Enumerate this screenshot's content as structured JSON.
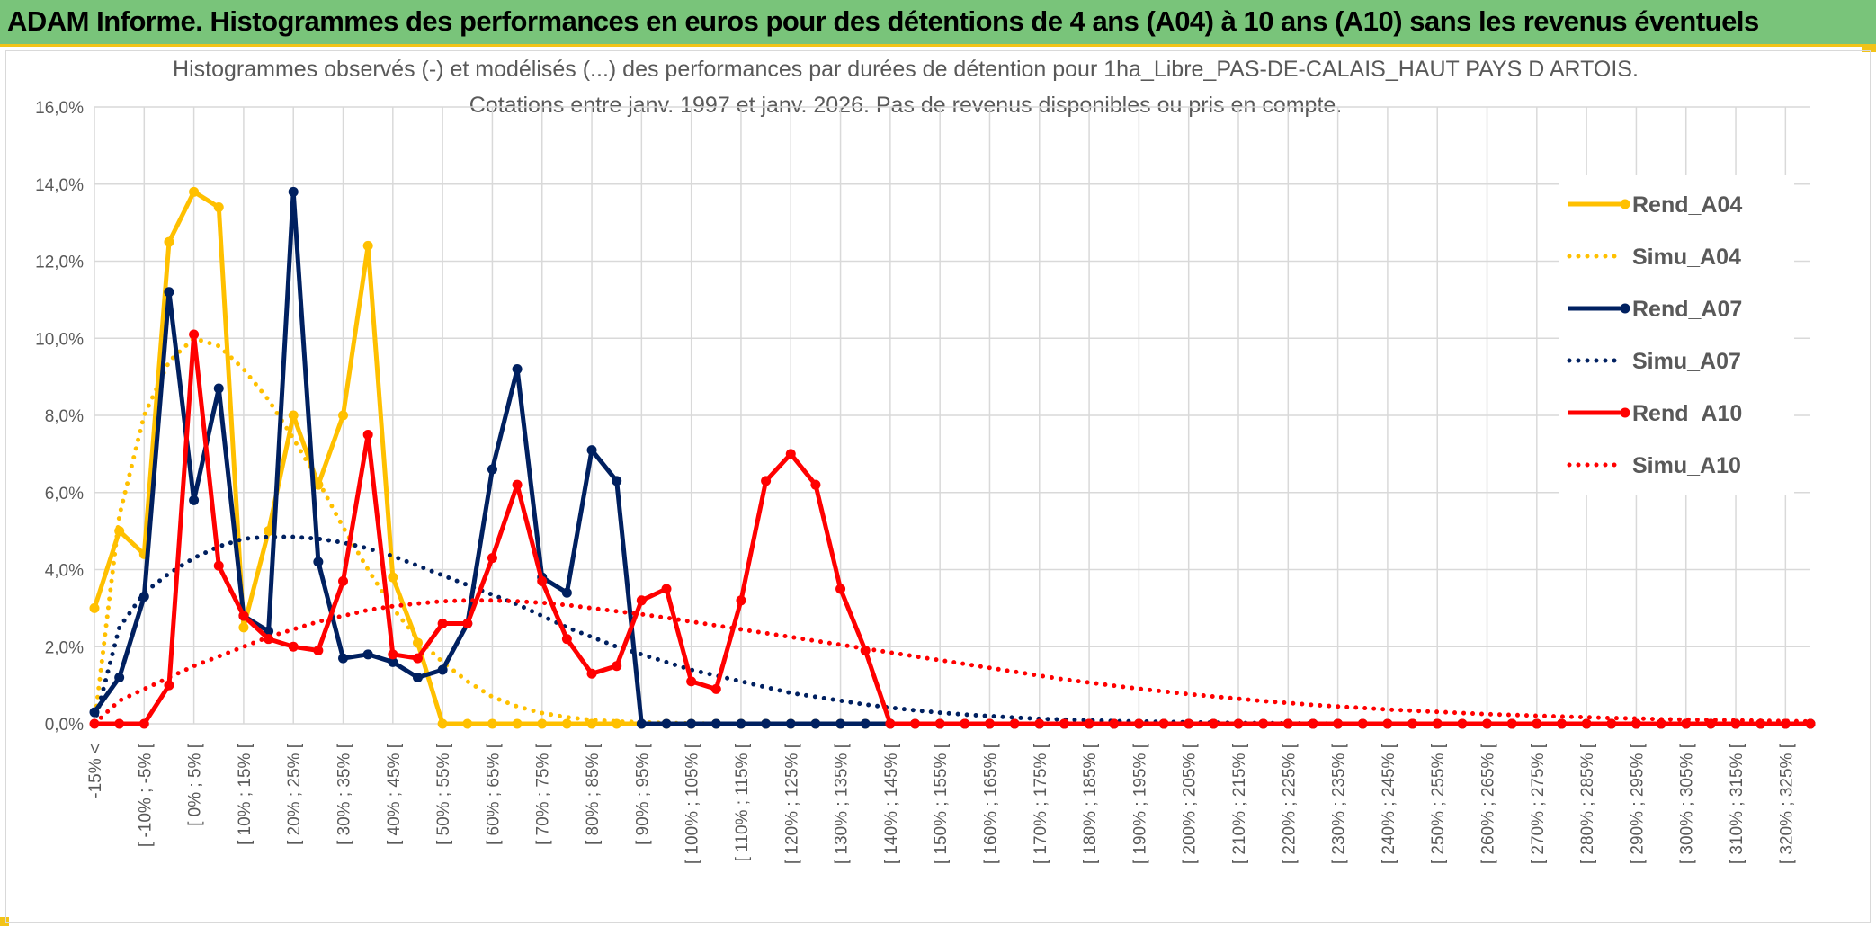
{
  "banner": {
    "title": "ADAM Informe. Histogrammes des performances en euros pour des détentions de 4 ans (A04) à 10 ans (A10) sans les revenus éventuels"
  },
  "colors": {
    "banner_bg": "#79c47a",
    "accent_yellow": "#f2c318",
    "a04": "#ffc000",
    "a07": "#002060",
    "a10": "#ff0000",
    "grid": "#d9d9d9",
    "text": "#595959"
  },
  "chart_data": {
    "type": "line",
    "title_line1": "Histogrammes observés (-) et modélisés (...) des performances par durées de détention pour 1ha_Libre_PAS-DE-CALAIS_HAUT PAYS D ARTOIS.",
    "title_line2": "Cotations entre janv. 1997 et janv. 2026. Pas de revenus disponibles ou pris en compte.",
    "ylim": [
      0,
      16
    ],
    "yticks": [
      "0,0%",
      "2,0%",
      "4,0%",
      "6,0%",
      "8,0%",
      "10,0%",
      "12,0%",
      "14,0%",
      "16,0%"
    ],
    "categories": [
      "-15% <",
      "[ -15% ; -10% [",
      "[ -10% ; -5% [",
      "[ -5% ; 0% [",
      "[ 0% ; 5% [",
      "[ 5% ; 10% [",
      "[ 10% ; 15% [",
      "[ 15% ; 20% [",
      "[ 20% ; 25% [",
      "[ 25% ; 30% [",
      "[ 30% ; 35% [",
      "[ 35% ; 40% [",
      "[ 40% ; 45% [",
      "[ 45% ; 50% [",
      "[ 50% ; 55% [",
      "[ 55% ; 60% [",
      "[ 60% ; 65% [",
      "[ 65% ; 70% [",
      "[ 70% ; 75% [",
      "[ 75% ; 80% [",
      "[ 80% ; 85% [",
      "[ 85% ; 90% [",
      "[ 90% ; 95% [",
      "[ 95% ; 100% [",
      "[ 100% ; 105% [",
      "[ 105% ; 110% [",
      "[ 110% ; 115% [",
      "[ 115% ; 120% [",
      "[ 120% ; 125% [",
      "[ 125% ; 130% [",
      "[ 130% ; 135% [",
      "[ 135% ; 140% [",
      "[ 140% ; 145% [",
      "[ 145% ; 150% [",
      "[ 150% ; 155% [",
      "[ 155% ; 160% [",
      "[ 160% ; 165% [",
      "[ 165% ; 170% [",
      "[ 170% ; 175% [",
      "[ 175% ; 180% [",
      "[ 180% ; 185% [",
      "[ 185% ; 190% [",
      "[ 190% ; 195% [",
      "[ 195% ; 200% [",
      "[ 200% ; 205% [",
      "[ 205% ; 210% [",
      "[ 210% ; 215% [",
      "[ 215% ; 220% [",
      "[ 220% ; 225% [",
      "[ 225% ; 230% [",
      "[ 230% ; 235% [",
      "[ 235% ; 240% [",
      "[ 240% ; 245% [",
      "[ 245% ; 250% [",
      "[ 250% ; 255% [",
      "[ 255% ; 260% [",
      "[ 260% ; 265% [",
      "[ 265% ; 270% [",
      "[ 270% ; 275% [",
      "[ 275% ; 280% [",
      "[ 280% ; 285% [",
      "[ 285% ; 290% [",
      "[ 290% ; 295% [",
      "[ 295% ; 300% [",
      "[ 300% ; 305% [",
      "[ 305% ; 310% [",
      "[ 310% ; 315% [",
      "[ 315% ; 320% [",
      "[ 320% ; 325% [",
      "[ 325% ; 330% ["
    ],
    "xtick_labels": [
      "-15% <",
      "[ -10% ; -5% [",
      "[ 0% ; 5% [",
      "[ 10% ; 15% [",
      "[ 20% ; 25% [",
      "[ 30% ; 35% [",
      "[ 40% ; 45% [",
      "[ 50% ; 55% [",
      "[ 60% ; 65% [",
      "[ 70% ; 75% [",
      "[ 80% ; 85% [",
      "[ 90% ; 95% [",
      "[ 100% ; 105% [",
      "[ 110% ; 115% [",
      "[ 120% ; 125% [",
      "[ 130% ; 135% [",
      "[ 140% ; 145% [",
      "[ 150% ; 155% [",
      "[ 160% ; 165% [",
      "[ 170% ; 175% [",
      "[ 180% ; 185% [",
      "[ 190% ; 195% [",
      "[ 200% ; 205% [",
      "[ 210% ; 215% [",
      "[ 220% ; 225% [",
      "[ 230% ; 235% [",
      "[ 240% ; 245% [",
      "[ 250% ; 255% [",
      "[ 260% ; 265% [",
      "[ 270% ; 275% [",
      "[ 280% ; 285% [",
      "[ 290% ; 295% [",
      "[ 300% ; 305% [",
      "[ 310% ; 315% [",
      "[ 320% ; 325% ["
    ],
    "series": [
      {
        "name": "Rend_A04",
        "style": "solid",
        "color": "#ffc000",
        "values": [
          3.0,
          5.0,
          4.4,
          12.5,
          13.8,
          13.4,
          2.5,
          5.0,
          8.0,
          6.2,
          8.0,
          12.4,
          3.8,
          2.1,
          0,
          0,
          0,
          0,
          0,
          0,
          0,
          0,
          0,
          0,
          0,
          0,
          0,
          0,
          0,
          0,
          0,
          0,
          0,
          0,
          0,
          0,
          0,
          0,
          0,
          0,
          0,
          0,
          0,
          0,
          0,
          0,
          0,
          0,
          0,
          0,
          0,
          0,
          0,
          0,
          0,
          0,
          0,
          0,
          0,
          0,
          0,
          0,
          0,
          0,
          0,
          0,
          0,
          0,
          0,
          0
        ]
      },
      {
        "name": "Simu_A04",
        "style": "dotted",
        "color": "#ffc000",
        "values": [
          0,
          5.4,
          8.0,
          9.4,
          10.0,
          9.8,
          9.2,
          8.4,
          7.4,
          6.3,
          5.1,
          4.0,
          3.0,
          2.2,
          1.6,
          1.1,
          0.7,
          0.45,
          0.28,
          0.17,
          0.1,
          0.06,
          0.04,
          0.02,
          0.01,
          0,
          0,
          0,
          0,
          0,
          0,
          0,
          0,
          0,
          0,
          0,
          0,
          0,
          0,
          0,
          0,
          0,
          0,
          0,
          0,
          0,
          0,
          0,
          0,
          0,
          0,
          0,
          0,
          0,
          0,
          0,
          0,
          0,
          0,
          0,
          0,
          0,
          0,
          0,
          0,
          0,
          0,
          0,
          0,
          0
        ]
      },
      {
        "name": "Rend_A07",
        "style": "solid",
        "color": "#002060",
        "values": [
          0.3,
          1.2,
          3.3,
          11.2,
          5.8,
          8.7,
          2.8,
          2.4,
          13.8,
          4.2,
          1.7,
          1.8,
          1.6,
          1.2,
          1.4,
          2.6,
          6.6,
          9.2,
          3.8,
          3.4,
          7.1,
          6.3,
          0,
          0,
          0,
          0,
          0,
          0,
          0,
          0,
          0,
          0,
          0,
          0,
          0,
          0,
          0,
          0,
          0,
          0,
          0,
          0,
          0,
          0,
          0,
          0,
          0,
          0,
          0,
          0,
          0,
          0,
          0,
          0,
          0,
          0,
          0,
          0,
          0,
          0,
          0,
          0,
          0,
          0,
          0,
          0,
          0,
          0,
          0,
          0
        ]
      },
      {
        "name": "Simu_A07",
        "style": "dotted",
        "color": "#002060",
        "values": [
          0,
          2.5,
          3.4,
          3.9,
          4.3,
          4.6,
          4.8,
          4.85,
          4.85,
          4.8,
          4.7,
          4.55,
          4.35,
          4.1,
          3.85,
          3.6,
          3.35,
          3.1,
          2.8,
          2.5,
          2.25,
          2.0,
          1.8,
          1.6,
          1.4,
          1.25,
          1.1,
          0.95,
          0.8,
          0.7,
          0.6,
          0.5,
          0.42,
          0.35,
          0.29,
          0.24,
          0.2,
          0.16,
          0.13,
          0.11,
          0.09,
          0.07,
          0.06,
          0.05,
          0.04,
          0.03,
          0.02,
          0.02,
          0.01,
          0.01,
          0,
          0,
          0,
          0,
          0,
          0,
          0,
          0,
          0,
          0,
          0,
          0,
          0,
          0,
          0,
          0,
          0,
          0,
          0,
          0
        ]
      },
      {
        "name": "Rend_A10",
        "style": "solid",
        "color": "#ff0000",
        "values": [
          0,
          0,
          0,
          1.0,
          10.1,
          4.1,
          2.8,
          2.2,
          2.0,
          1.9,
          3.7,
          7.5,
          1.8,
          1.7,
          2.6,
          2.6,
          4.3,
          6.2,
          3.7,
          2.2,
          1.3,
          1.5,
          3.2,
          3.5,
          1.1,
          0.9,
          3.2,
          6.3,
          7.0,
          6.2,
          3.5,
          1.9,
          0,
          0,
          0,
          0,
          0,
          0,
          0,
          0,
          0,
          0,
          0,
          0,
          0,
          0,
          0,
          0,
          0,
          0,
          0,
          0,
          0,
          0,
          0,
          0,
          0,
          0,
          0,
          0,
          0,
          0,
          0,
          0,
          0,
          0,
          0,
          0,
          0,
          0
        ]
      },
      {
        "name": "Simu_A10",
        "style": "dotted",
        "color": "#ff0000",
        "values": [
          0.0,
          0.6,
          0.9,
          1.2,
          1.5,
          1.75,
          2.0,
          2.25,
          2.45,
          2.65,
          2.8,
          2.95,
          3.05,
          3.12,
          3.18,
          3.2,
          3.2,
          3.18,
          3.14,
          3.08,
          3.0,
          2.92,
          2.84,
          2.75,
          2.65,
          2.55,
          2.45,
          2.35,
          2.25,
          2.15,
          2.05,
          1.95,
          1.85,
          1.75,
          1.65,
          1.55,
          1.45,
          1.35,
          1.25,
          1.15,
          1.07,
          0.99,
          0.91,
          0.84,
          0.77,
          0.71,
          0.65,
          0.59,
          0.54,
          0.49,
          0.45,
          0.41,
          0.37,
          0.34,
          0.31,
          0.28,
          0.25,
          0.23,
          0.21,
          0.19,
          0.17,
          0.15,
          0.14,
          0.12,
          0.11,
          0.1,
          0.09,
          0.08,
          0.07,
          0.06
        ]
      }
    ],
    "legend": [
      "Rend_A04",
      "Simu_A04",
      "Rend_A07",
      "Simu_A07",
      "Rend_A10",
      "Simu_A10"
    ],
    "legend_position": "top-right"
  }
}
